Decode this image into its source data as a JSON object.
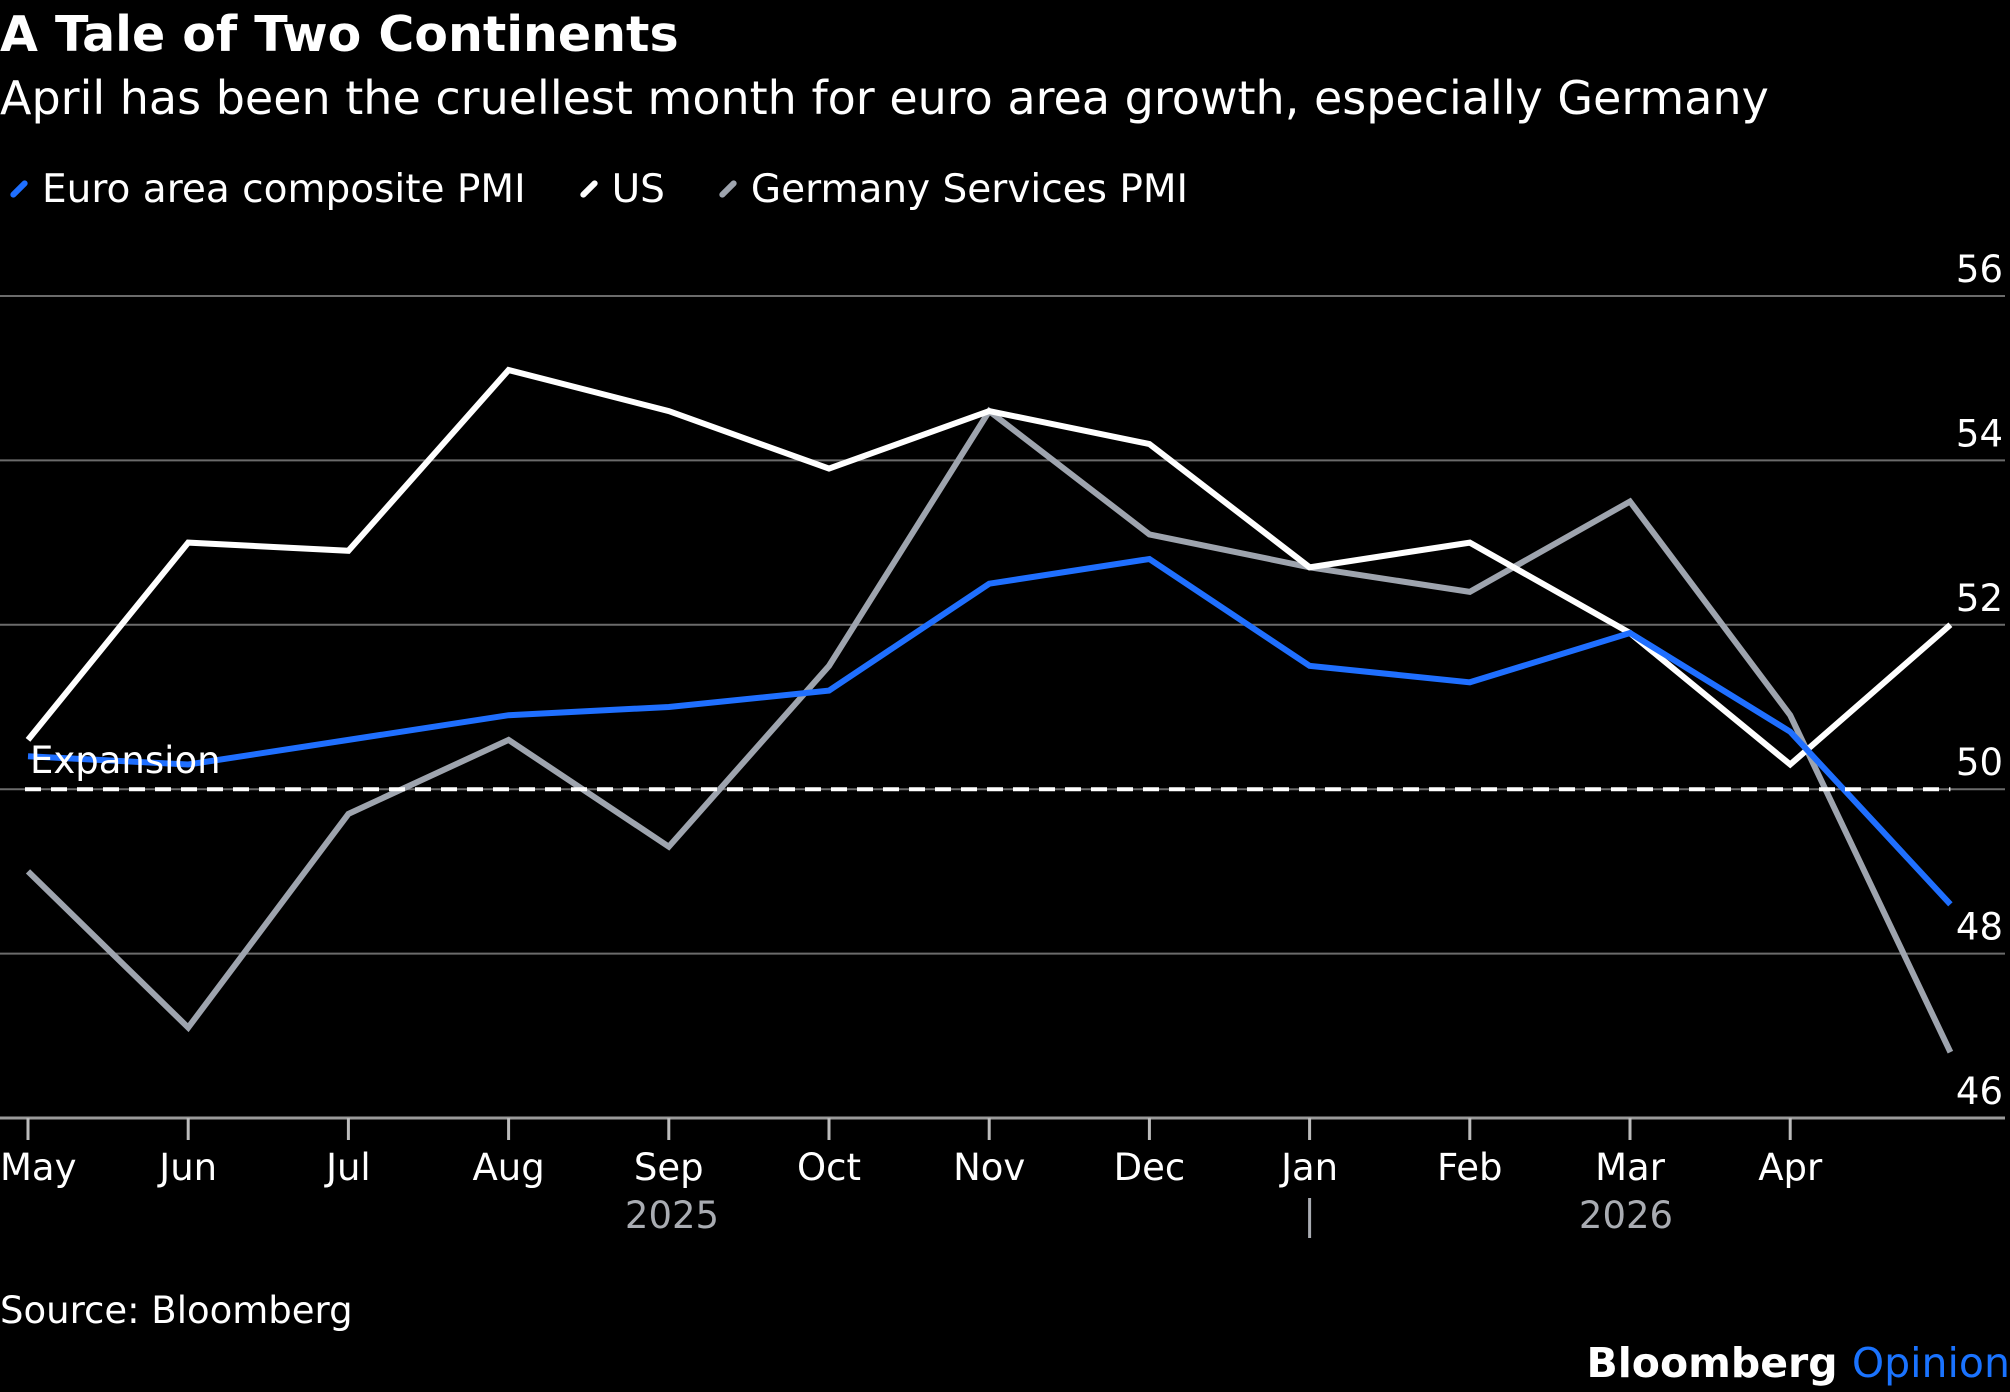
{
  "title": "A Tale of Two Continents",
  "subtitle": "April has been the cruellest month for euro area growth, especially Germany",
  "legend": [
    {
      "label": "Euro area composite PMI",
      "color": "#1f6fff"
    },
    {
      "label": "US",
      "color": "#ffffff"
    },
    {
      "label": "Germany Services PMI",
      "color": "#9ea4ae"
    }
  ],
  "source": "Source: Bloomberg",
  "brand": {
    "name": "Bloomberg",
    "suffix": "Opinion"
  },
  "chart_data": {
    "type": "line",
    "title": "A Tale of Two Continents",
    "subtitle": "April has been the cruellest month for euro area growth, especially Germany",
    "x": [
      "2025-05",
      "2025-06",
      "2025-07",
      "2025-08",
      "2025-09",
      "2025-10",
      "2025-11",
      "2025-12",
      "2026-01",
      "2026-02",
      "2026-03",
      "2026-04",
      "2026-05"
    ],
    "x_tick_labels": [
      "May",
      "Jun",
      "Jul",
      "Aug",
      "Sep",
      "Oct",
      "Nov",
      "Dec",
      "Jan",
      "Feb",
      "Mar",
      "Apr"
    ],
    "year_labels": [
      "2025",
      "2026"
    ],
    "ylim": [
      46,
      56
    ],
    "yticks": [
      46,
      48,
      50,
      52,
      54,
      56
    ],
    "y_axis_side": "right",
    "grid": true,
    "legend_position": "top-left",
    "series": [
      {
        "name": "Euro area composite PMI",
        "color": "#1f6fff",
        "values": [
          50.4,
          50.3,
          50.6,
          50.9,
          51.0,
          51.2,
          52.5,
          52.8,
          51.5,
          51.3,
          51.9,
          50.7,
          48.6
        ]
      },
      {
        "name": "US",
        "color": "#ffffff",
        "values": [
          50.6,
          53.0,
          52.9,
          55.1,
          54.6,
          53.9,
          54.6,
          54.2,
          52.7,
          53.0,
          51.9,
          50.3,
          52.0
        ]
      },
      {
        "name": "Germany Services PMI",
        "color": "#9ea4ae",
        "values": [
          49.0,
          47.1,
          49.7,
          50.6,
          49.3,
          51.5,
          54.6,
          53.1,
          52.7,
          52.4,
          53.5,
          50.9,
          46.8
        ]
      }
    ],
    "reference_line": {
      "value": 50,
      "label": "Expansion",
      "style": "dashed"
    }
  }
}
